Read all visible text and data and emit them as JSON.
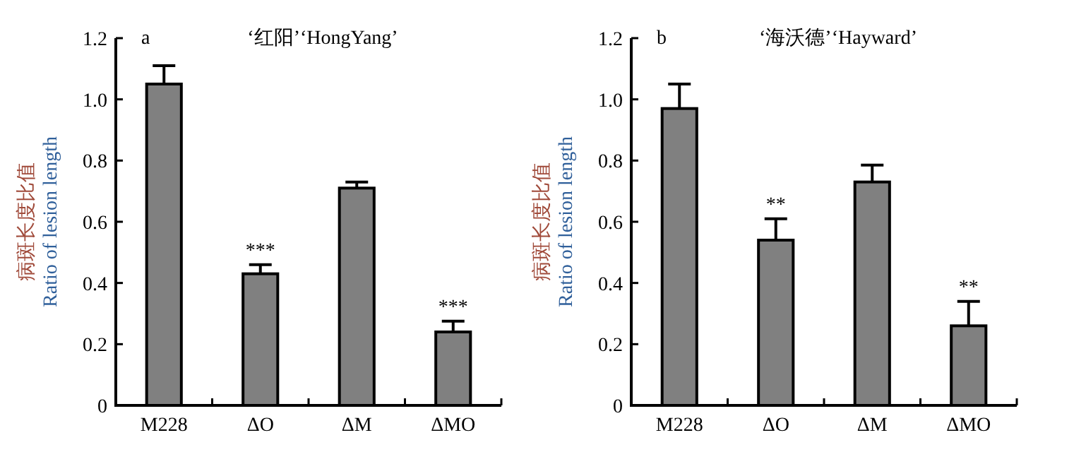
{
  "chart_data": [
    {
      "type": "bar",
      "title": "‘红阳’‘HongYang’",
      "ylabel": "病斑长度比值\nRatio of lesion length",
      "categories": [
        "M228",
        "ΔO",
        "ΔM",
        "ΔMO"
      ],
      "values": [
        1.05,
        0.43,
        0.71,
        0.24
      ],
      "color": "#808080",
      "errors": [
        [
          1.05,
          1.11
        ],
        [
          0.43,
          0.46
        ],
        [
          0.71,
          0.73
        ],
        [
          0.24,
          0.275
        ]
      ],
      "ylim": [
        0,
        1.2
      ],
      "yticks": [
        0,
        0.2,
        0.4,
        0.6,
        0.8,
        {
          "value": 1,
          "label": "1.0"
        },
        1.2
      ],
      "annotations": [
        "a",
        {
          "text": "***",
          "x": "ΔO",
          "y": 0.46
        },
        {
          "text": "***",
          "x": "ΔMO",
          "y": 0.275
        }
      ]
    },
    {
      "type": "bar",
      "title": "‘海沃德’‘Hayward’",
      "ylabel": "病斑长度比值\nRatio of lesion length",
      "categories": [
        "M228",
        "ΔO",
        "ΔM",
        "ΔMO"
      ],
      "values": [
        0.97,
        0.54,
        0.73,
        0.26
      ],
      "color": "#808080",
      "errors": [
        [
          0.97,
          1.05
        ],
        [
          0.54,
          0.61
        ],
        [
          0.73,
          0.785
        ],
        [
          0.26,
          0.34
        ]
      ],
      "ylim": [
        0,
        1.2
      ],
      "yticks": [
        0,
        0.2,
        0.4,
        0.6,
        0.8,
        {
          "value": 1,
          "label": "1.0"
        },
        1.2
      ],
      "annotations": [
        "b",
        {
          "text": "**",
          "x": "ΔO",
          "y": 0.61
        },
        {
          "text": "**",
          "x": "ΔMO",
          "y": 0.34
        }
      ]
    }
  ]
}
